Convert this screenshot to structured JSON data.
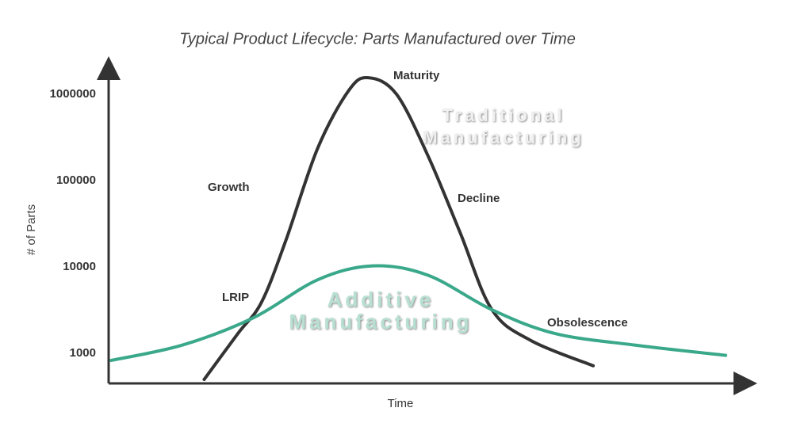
{
  "chart_data": {
    "type": "line",
    "title": "Typical Product Lifecycle: Parts Manufactured over Time",
    "x_label": "Time",
    "y_label": "# of Parts",
    "log_scale": true,
    "grid": false,
    "xlim": [
      0,
      100
    ],
    "ylim": [
      450,
      2000000
    ],
    "yticks": [
      1000,
      10000,
      100000,
      1000000
    ],
    "series": [
      {
        "name": "Traditional Manufacturing",
        "color": "#333333",
        "x": [
          15,
          20.3,
          24,
          27.8,
          32.8,
          37.7,
          40.8,
          45.2,
          50.2,
          55.2,
          60.2,
          66.4,
          76.1
        ],
        "values": [
          500,
          1700,
          3900,
          20000,
          234000,
          1100000,
          1550000,
          1000000,
          190000,
          25000,
          3200,
          1400,
          720
        ]
      },
      {
        "name": "Additive Manufacturing",
        "color": "#3aa88a",
        "x": [
          0.4,
          11.6,
          22.8,
          32.8,
          41.5,
          50.2,
          60.2,
          70.1,
          82.6,
          96.9
        ],
        "values": [
          830,
          1250,
          2600,
          7100,
          10300,
          8000,
          3200,
          1700,
          1250,
          950
        ]
      }
    ],
    "annotations": [
      "Maturity",
      "Growth",
      "Decline",
      "LRIP",
      "Obsolescence"
    ]
  }
}
